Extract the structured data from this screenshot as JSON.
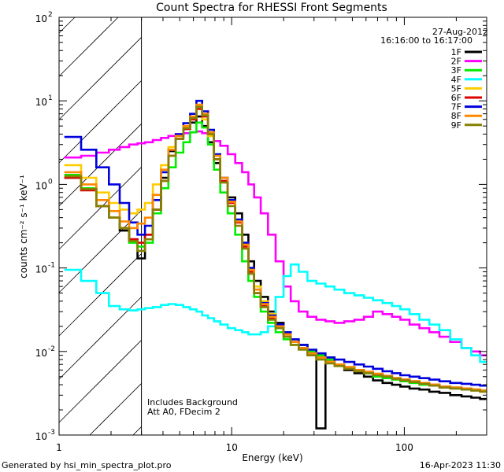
{
  "chart_data": {
    "type": "line",
    "title": "Count Spectra for RHESSI Front Segments",
    "xlabel": "Energy (keV)",
    "ylabel": "counts cm⁻² s⁻¹ keV⁻¹",
    "x_scale": "log",
    "y_scale": "log",
    "xlim": [
      1,
      300
    ],
    "ylim": [
      0.001,
      100
    ],
    "x_tick_labels": [
      {
        "value": 1,
        "label": "1"
      },
      {
        "value": 10,
        "label": "10"
      },
      {
        "value": 100,
        "label": "100"
      }
    ],
    "y_tick_labels": [
      {
        "value": 0.001,
        "base": "10",
        "exp": "-3"
      },
      {
        "value": 0.01,
        "base": "10",
        "exp": "-2"
      },
      {
        "value": 0.1,
        "base": "10",
        "exp": "-1"
      },
      {
        "value": 1,
        "base": "10",
        "exp": "0"
      },
      {
        "value": 10,
        "base": "10",
        "exp": "1"
      },
      {
        "value": 100,
        "base": "10",
        "exp": "2"
      }
    ],
    "shaded_region": {
      "x_from": 1,
      "x_to": 3,
      "pattern": "diagonal-hatch"
    },
    "date": "27-Aug-2012",
    "time_range": "16:16:00 to 16:17:00",
    "annotations": [
      "Includes Background",
      "Att A0, FDecim 2"
    ],
    "energies": [
      1.2,
      1.5,
      1.8,
      2.1,
      2.4,
      2.7,
      3.0,
      3.3,
      3.7,
      4.1,
      4.5,
      5.0,
      5.5,
      6.0,
      6.5,
      7.0,
      7.6,
      8.2,
      9.0,
      10,
      11,
      12,
      13,
      14,
      15.5,
      17,
      19,
      21,
      23,
      26,
      29,
      33,
      37,
      42,
      48,
      55,
      62,
      70,
      80,
      90,
      100,
      115,
      130,
      150,
      170,
      200,
      230,
      260,
      290
    ],
    "series": [
      {
        "name": "1F",
        "color": "#000000",
        "values": [
          1.2,
          0.9,
          0.55,
          0.4,
          0.28,
          0.22,
          0.13,
          0.25,
          0.5,
          1.2,
          2.5,
          3.8,
          4.6,
          5.5,
          6.5,
          5.0,
          3.2,
          1.8,
          1.1,
          0.7,
          0.45,
          0.25,
          0.12,
          0.07,
          0.045,
          0.03,
          0.022,
          0.017,
          0.014,
          0.012,
          0.01,
          0.0012,
          0.008,
          0.007,
          0.006,
          0.0055,
          0.005,
          0.0045,
          0.0042,
          0.004,
          0.0038,
          0.0036,
          0.0035,
          0.0033,
          0.0032,
          0.003,
          0.0029,
          0.0028,
          0.0027
        ]
      },
      {
        "name": "2F",
        "color": "#ff00ff",
        "values": [
          2.1,
          2.2,
          2.4,
          2.6,
          2.8,
          3.0,
          3.1,
          3.2,
          3.4,
          3.6,
          3.8,
          4.0,
          4.1,
          4.2,
          4.3,
          4.1,
          3.8,
          3.3,
          2.9,
          2.3,
          1.8,
          1.4,
          1.0,
          0.7,
          0.45,
          0.25,
          0.12,
          0.06,
          0.04,
          0.03,
          0.026,
          0.024,
          0.023,
          0.022,
          0.023,
          0.024,
          0.026,
          0.03,
          0.028,
          0.026,
          0.024,
          0.021,
          0.019,
          0.017,
          0.015,
          0.013,
          0.011,
          0.01,
          0.009
        ]
      },
      {
        "name": "3F",
        "color": "#00ee00",
        "values": [
          1.3,
          0.9,
          0.55,
          0.4,
          0.3,
          0.2,
          0.18,
          0.2,
          0.45,
          0.9,
          1.6,
          2.4,
          3.2,
          4.2,
          5.5,
          4.8,
          3.0,
          1.5,
          0.8,
          0.45,
          0.25,
          0.12,
          0.07,
          0.045,
          0.03,
          0.022,
          0.017,
          0.014,
          0.012,
          0.011,
          0.01,
          0.009,
          0.008,
          0.007,
          0.0065,
          0.006,
          0.0055,
          0.005,
          0.0048,
          0.0046,
          0.0044,
          0.0042,
          0.004,
          0.0039,
          0.0038,
          0.0037,
          0.0036,
          0.0035,
          0.0034
        ]
      },
      {
        "name": "4F",
        "color": "#00ffff",
        "values": [
          0.095,
          0.07,
          0.05,
          0.035,
          0.032,
          0.031,
          0.032,
          0.033,
          0.034,
          0.036,
          0.037,
          0.036,
          0.034,
          0.032,
          0.03,
          0.027,
          0.025,
          0.023,
          0.021,
          0.019,
          0.018,
          0.017,
          0.016,
          0.016,
          0.017,
          0.02,
          0.045,
          0.08,
          0.11,
          0.09,
          0.07,
          0.065,
          0.06,
          0.055,
          0.05,
          0.047,
          0.044,
          0.041,
          0.038,
          0.035,
          0.032,
          0.028,
          0.024,
          0.021,
          0.018,
          0.014,
          0.011,
          0.009,
          0.0075
        ]
      },
      {
        "name": "5F",
        "color": "#ffcc00",
        "values": [
          1.7,
          1.2,
          0.8,
          0.6,
          0.5,
          0.45,
          0.5,
          0.6,
          1.0,
          1.7,
          2.8,
          3.8,
          4.8,
          6.0,
          8.0,
          6.0,
          3.8,
          2.0,
          1.1,
          0.6,
          0.35,
          0.2,
          0.1,
          0.06,
          0.04,
          0.028,
          0.02,
          0.016,
          0.013,
          0.011,
          0.0095,
          0.0085,
          0.0075,
          0.007,
          0.0065,
          0.006,
          0.0057,
          0.0054,
          0.0051,
          0.0048,
          0.0046,
          0.0044,
          0.0042,
          0.004,
          0.0038,
          0.0037,
          0.0036,
          0.0035,
          0.0034
        ]
      },
      {
        "name": "6F",
        "color": "#dd0000",
        "values": [
          1.2,
          0.85,
          0.55,
          0.4,
          0.3,
          0.22,
          0.2,
          0.25,
          0.5,
          1.1,
          2.2,
          3.5,
          4.6,
          6.0,
          8.0,
          6.5,
          4.0,
          2.0,
          1.1,
          0.6,
          0.35,
          0.18,
          0.09,
          0.05,
          0.035,
          0.025,
          0.02,
          0.016,
          0.013,
          0.011,
          0.0095,
          0.0085,
          0.0075,
          0.007,
          0.0065,
          0.006,
          0.0057,
          0.0054,
          0.0051,
          0.0048,
          0.0046,
          0.0044,
          0.0042,
          0.004,
          0.0038,
          0.0037,
          0.0036,
          0.0035,
          0.0034
        ]
      },
      {
        "name": "7F",
        "color": "#0000dd",
        "values": [
          3.7,
          2.6,
          1.6,
          1.0,
          0.6,
          0.35,
          0.25,
          0.32,
          0.65,
          1.4,
          2.6,
          4.0,
          5.4,
          7.0,
          10.0,
          7.5,
          4.5,
          2.3,
          1.2,
          0.65,
          0.38,
          0.2,
          0.1,
          0.055,
          0.038,
          0.027,
          0.021,
          0.017,
          0.014,
          0.012,
          0.0105,
          0.0095,
          0.0085,
          0.008,
          0.0075,
          0.007,
          0.0066,
          0.0062,
          0.0058,
          0.0055,
          0.0052,
          0.005,
          0.0048,
          0.0046,
          0.0044,
          0.0042,
          0.0041,
          0.004,
          0.0039
        ]
      },
      {
        "name": "8F",
        "color": "#ff8800",
        "values": [
          1.4,
          1.0,
          0.65,
          0.48,
          0.36,
          0.3,
          0.34,
          0.4,
          0.75,
          1.5,
          2.6,
          3.8,
          5.0,
          6.5,
          9.0,
          7.0,
          4.2,
          2.2,
          1.2,
          0.62,
          0.36,
          0.19,
          0.095,
          0.055,
          0.037,
          0.026,
          0.02,
          0.016,
          0.013,
          0.011,
          0.0095,
          0.0085,
          0.0075,
          0.007,
          0.0065,
          0.006,
          0.0057,
          0.0054,
          0.0051,
          0.0048,
          0.0046,
          0.0044,
          0.0042,
          0.004,
          0.0038,
          0.0037,
          0.0036,
          0.0035,
          0.0034
        ]
      },
      {
        "name": "9F",
        "color": "#888000",
        "values": [
          1.25,
          0.88,
          0.55,
          0.4,
          0.3,
          0.21,
          0.16,
          0.22,
          0.5,
          1.1,
          2.2,
          3.5,
          4.7,
          6.2,
          8.5,
          6.7,
          4.0,
          2.0,
          1.05,
          0.55,
          0.32,
          0.17,
          0.085,
          0.05,
          0.034,
          0.024,
          0.019,
          0.015,
          0.012,
          0.0105,
          0.009,
          0.008,
          0.0072,
          0.0067,
          0.0062,
          0.0058,
          0.0055,
          0.0052,
          0.005,
          0.0047,
          0.0045,
          0.0043,
          0.0041,
          0.0039,
          0.0037,
          0.0036,
          0.0035,
          0.0034,
          0.0033
        ]
      }
    ]
  },
  "footer": {
    "generated_by": "Generated by hsi_min_spectra_plot.pro",
    "timestamp": "16-Apr-2023 11:30"
  },
  "colors": {
    "background": "#ffffff",
    "axis": "#000000"
  }
}
